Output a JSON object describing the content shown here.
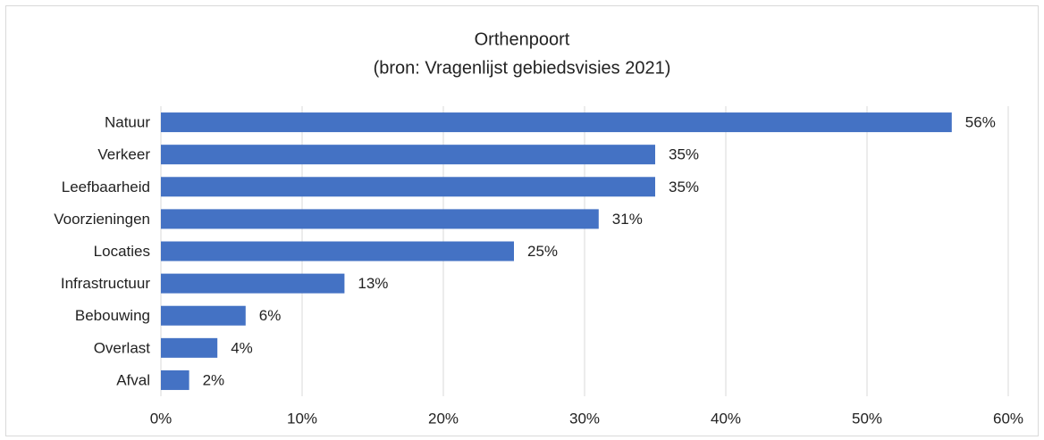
{
  "chart_data": {
    "type": "bar",
    "orientation": "horizontal",
    "title": "Orthenpoort",
    "subtitle": "(bron: Vragenlijst gebiedsvisies 2021)",
    "categories": [
      "Natuur",
      "Verkeer",
      "Leefbaarheid",
      "Voorzieningen",
      "Locaties",
      "Infrastructuur",
      "Bebouwing",
      "Overlast",
      "Afval"
    ],
    "values": [
      56,
      35,
      35,
      31,
      25,
      13,
      6,
      4,
      2
    ],
    "value_labels": [
      "56%",
      "35%",
      "35%",
      "31%",
      "25%",
      "13%",
      "6%",
      "4%",
      "2%"
    ],
    "color": "#4472c4",
    "xlim": [
      0,
      60
    ],
    "xticks": [
      {
        "value": 0,
        "label": "0%"
      },
      {
        "value": 10,
        "label": "10%"
      },
      {
        "value": 20,
        "label": "20%"
      },
      {
        "value": 30,
        "label": "30%"
      },
      {
        "value": 40,
        "label": "40%"
      },
      {
        "value": 50,
        "label": "50%"
      },
      {
        "value": 60,
        "label": "60%"
      }
    ],
    "grid": true
  }
}
